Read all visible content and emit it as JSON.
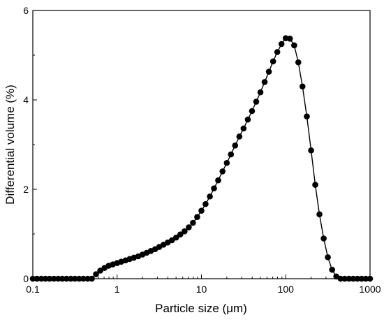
{
  "chart_data": {
    "type": "scatter",
    "title": "",
    "xlabel": "Particle size (μm)",
    "ylabel": "Differential volume (%)",
    "x_scale": "log",
    "xlim": [
      0.1,
      1000
    ],
    "ylim": [
      0,
      6
    ],
    "x_ticks": [
      "0.1",
      "1",
      "10",
      "100",
      "1000"
    ],
    "y_ticks": [
      "0",
      "2",
      "4",
      "6"
    ],
    "grid": false,
    "legend": "none",
    "series": [
      {
        "marker": "filled-circle",
        "line": "solid",
        "color": "#000000",
        "points": [
          [
            0.1,
            0
          ],
          [
            0.112,
            0
          ],
          [
            0.126,
            0
          ],
          [
            0.141,
            0
          ],
          [
            0.158,
            0
          ],
          [
            0.178,
            0
          ],
          [
            0.2,
            0
          ],
          [
            0.224,
            0
          ],
          [
            0.251,
            0
          ],
          [
            0.282,
            0
          ],
          [
            0.316,
            0
          ],
          [
            0.355,
            0
          ],
          [
            0.398,
            0
          ],
          [
            0.447,
            0
          ],
          [
            0.501,
            0
          ],
          [
            0.562,
            0.1
          ],
          [
            0.631,
            0.18
          ],
          [
            0.708,
            0.24
          ],
          [
            0.794,
            0.29
          ],
          [
            0.891,
            0.32
          ],
          [
            1.0,
            0.35
          ],
          [
            1.12,
            0.38
          ],
          [
            1.26,
            0.41
          ],
          [
            1.41,
            0.44
          ],
          [
            1.58,
            0.47
          ],
          [
            1.78,
            0.5
          ],
          [
            2.0,
            0.54
          ],
          [
            2.24,
            0.58
          ],
          [
            2.51,
            0.62
          ],
          [
            2.82,
            0.66
          ],
          [
            3.16,
            0.71
          ],
          [
            3.55,
            0.76
          ],
          [
            3.98,
            0.81
          ],
          [
            4.47,
            0.86
          ],
          [
            5.01,
            0.92
          ],
          [
            5.62,
            0.99
          ],
          [
            6.31,
            1.06
          ],
          [
            7.08,
            1.15
          ],
          [
            7.94,
            1.25
          ],
          [
            8.91,
            1.38
          ],
          [
            10.0,
            1.52
          ],
          [
            11.2,
            1.67
          ],
          [
            12.6,
            1.84
          ],
          [
            14.1,
            2.02
          ],
          [
            15.8,
            2.2
          ],
          [
            17.8,
            2.4
          ],
          [
            20.0,
            2.59
          ],
          [
            22.4,
            2.78
          ],
          [
            25.1,
            2.98
          ],
          [
            28.2,
            3.18
          ],
          [
            31.6,
            3.36
          ],
          [
            35.5,
            3.56
          ],
          [
            39.8,
            3.75
          ],
          [
            44.7,
            3.96
          ],
          [
            50.1,
            4.17
          ],
          [
            56.2,
            4.4
          ],
          [
            63.1,
            4.63
          ],
          [
            70.8,
            4.86
          ],
          [
            79.4,
            5.07
          ],
          [
            89.1,
            5.25
          ],
          [
            100,
            5.38
          ],
          [
            112,
            5.37
          ],
          [
            126,
            5.22
          ],
          [
            141,
            4.84
          ],
          [
            158,
            4.3
          ],
          [
            178,
            3.63
          ],
          [
            200,
            2.87
          ],
          [
            224,
            2.1
          ],
          [
            251,
            1.44
          ],
          [
            282,
            0.9
          ],
          [
            316,
            0.48
          ],
          [
            355,
            0.2
          ],
          [
            398,
            0.05
          ],
          [
            447,
            0
          ],
          [
            501,
            0
          ],
          [
            562,
            0
          ],
          [
            631,
            0
          ],
          [
            708,
            0
          ],
          [
            794,
            0
          ],
          [
            891,
            0
          ],
          [
            1000,
            0
          ]
        ]
      }
    ]
  }
}
